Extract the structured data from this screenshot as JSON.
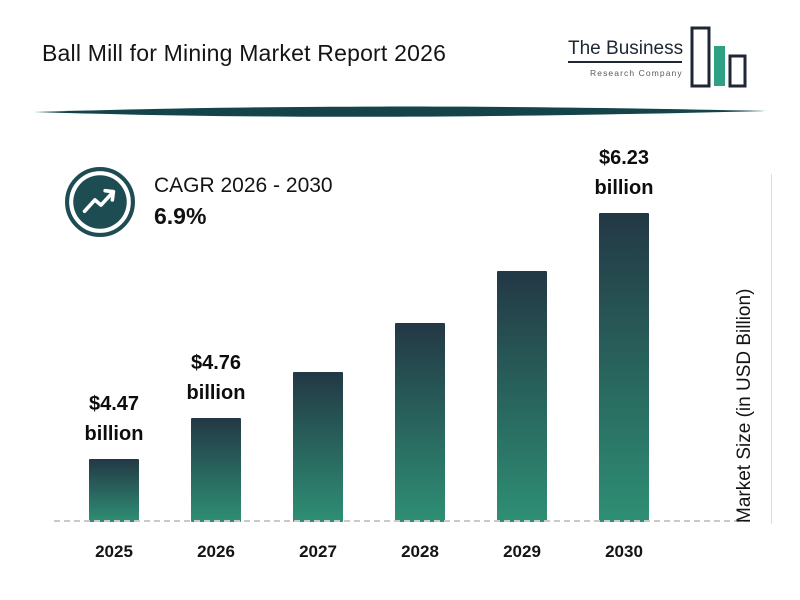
{
  "header": {
    "title": "Ball Mill for Mining Market Report 2026",
    "logo": {
      "line1": "The Business",
      "line2": "Research Company"
    }
  },
  "cagr": {
    "label": "CAGR 2026 - 2030",
    "value": "6.9%"
  },
  "y_axis_label": "Market Size (in USD Billion)",
  "chart_data": {
    "type": "bar",
    "title": "Ball Mill for Mining Market Report 2026",
    "categories": [
      "2025",
      "2026",
      "2027",
      "2028",
      "2029",
      "2030"
    ],
    "values": [
      4.47,
      4.76,
      5.09,
      5.44,
      5.81,
      6.23
    ],
    "unit": "USD Billion",
    "value_labels": [
      "$4.47\nbillion",
      "$4.76\nbillion",
      "",
      "",
      "",
      "$6.23\nbillion"
    ],
    "xlabel": "",
    "ylabel": "Market Size (in USD Billion)",
    "legend": false,
    "grid": false,
    "baseline_style": "dashed",
    "bar_gradient_top": "#233845",
    "bar_gradient_bottom": "#2e8f74"
  },
  "colors": {
    "accent_dark": "#1e2733",
    "accent_teal": "#2fa183",
    "cagr_circle": "#1d4d52",
    "divider": "#14444a",
    "dashed_line": "#c9c9c9",
    "text": "#111111"
  }
}
